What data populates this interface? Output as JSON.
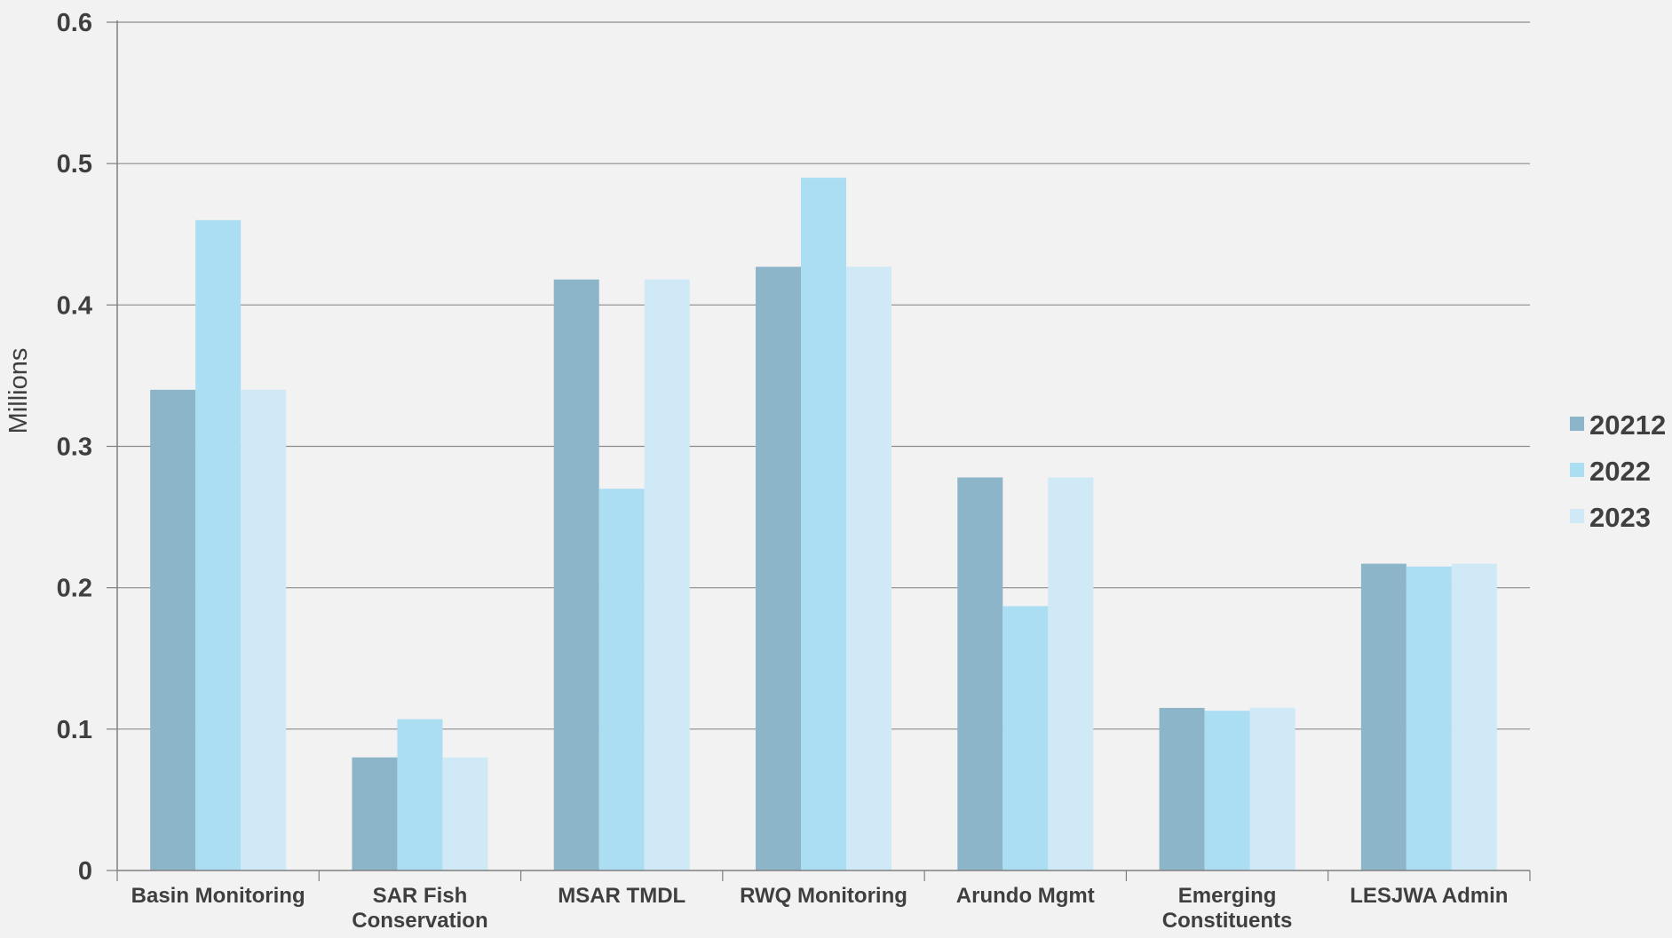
{
  "chart_data": {
    "type": "bar",
    "title": "",
    "xlabel": "",
    "ylabel": "Millions",
    "ylim": [
      0,
      0.6
    ],
    "yticks": [
      0,
      0.1,
      0.2,
      0.3,
      0.4,
      0.5,
      0.6
    ],
    "ytick_labels": [
      "0",
      "0.1",
      "0.2",
      "0.3",
      "0.4",
      "0.5",
      "0.6"
    ],
    "grid": true,
    "legend_position": "right",
    "categories": [
      [
        "Basin Monitoring"
      ],
      [
        "SAR Fish",
        "Conservation"
      ],
      [
        "MSAR TMDL"
      ],
      [
        "RWQ Monitoring"
      ],
      [
        "Arundo Mgmt"
      ],
      [
        "Emerging",
        "Constituents"
      ],
      [
        "LESJWA Admin"
      ]
    ],
    "series": [
      {
        "name": "20212",
        "color": "#8db5ca",
        "values": [
          0.34,
          0.08,
          0.418,
          0.427,
          0.278,
          0.115,
          0.217
        ]
      },
      {
        "name": "2022",
        "color": "#abdef3",
        "values": [
          0.46,
          0.107,
          0.27,
          0.49,
          0.187,
          0.113,
          0.215
        ]
      },
      {
        "name": "2023",
        "color": "#cfe9f6",
        "values": [
          0.34,
          0.08,
          0.418,
          0.427,
          0.278,
          0.115,
          0.217
        ]
      }
    ]
  }
}
